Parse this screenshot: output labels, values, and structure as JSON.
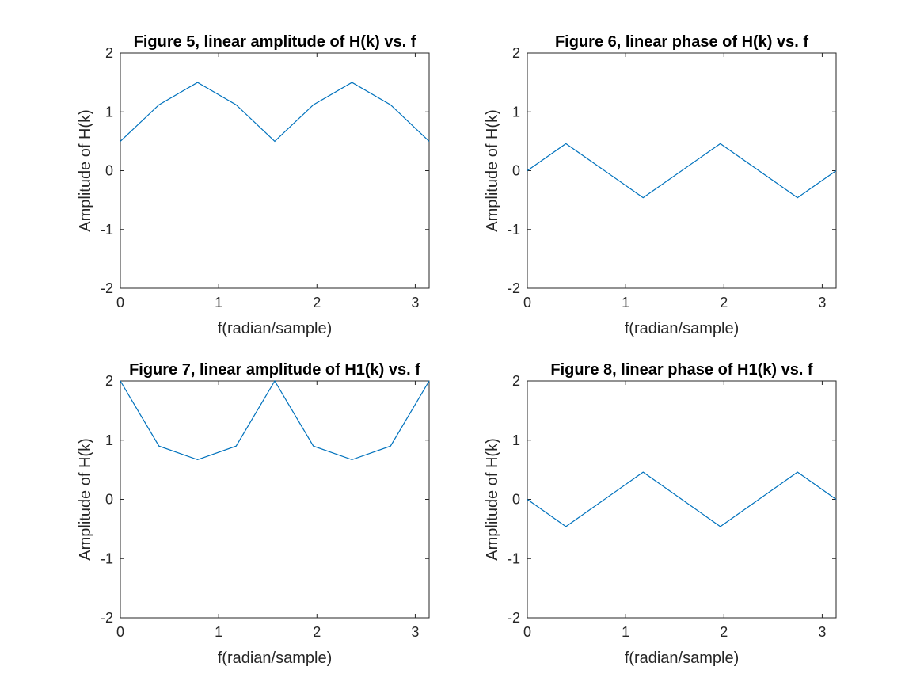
{
  "chart_data": [
    {
      "type": "line",
      "title": "Figure 5, linear amplitude of H(k) vs. f",
      "xlabel": "f(radian/sample)",
      "ylabel": "Amplitude of H(k)",
      "xlim": [
        0,
        3.1416
      ],
      "ylim": [
        -2,
        2
      ],
      "xticks": [
        0,
        1,
        2,
        3
      ],
      "yticks": [
        -2,
        -1,
        0,
        1,
        2
      ],
      "grid": false,
      "color": "#0072BD",
      "x": [
        0,
        0.3927,
        0.7854,
        1.1781,
        1.5708,
        1.9635,
        2.3562,
        2.7489,
        3.1416
      ],
      "y": [
        0.5,
        1.12,
        1.5,
        1.12,
        0.5,
        1.12,
        1.5,
        1.12,
        0.5
      ]
    },
    {
      "type": "line",
      "title": "Figure 6, linear phase of H(k) vs. f",
      "xlabel": "f(radian/sample)",
      "ylabel": "Amplitude of H(k)",
      "xlim": [
        0,
        3.1416
      ],
      "ylim": [
        -2,
        2
      ],
      "xticks": [
        0,
        1,
        2,
        3
      ],
      "yticks": [
        -2,
        -1,
        0,
        1,
        2
      ],
      "grid": false,
      "color": "#0072BD",
      "x": [
        0,
        0.3927,
        1.1781,
        1.9635,
        2.7489,
        3.1416
      ],
      "y": [
        0,
        0.46,
        -0.46,
        0.46,
        -0.46,
        0
      ]
    },
    {
      "type": "line",
      "title": "Figure 7, linear amplitude of H1(k) vs. f",
      "xlabel": "f(radian/sample)",
      "ylabel": "Amplitude of H(k)",
      "xlim": [
        0,
        3.1416
      ],
      "ylim": [
        -2,
        2
      ],
      "xticks": [
        0,
        1,
        2,
        3
      ],
      "yticks": [
        -2,
        -1,
        0,
        1,
        2
      ],
      "grid": false,
      "color": "#0072BD",
      "x": [
        0,
        0.3927,
        0.7854,
        1.1781,
        1.5708,
        1.9635,
        2.3562,
        2.7489,
        3.1416
      ],
      "y": [
        2,
        0.9,
        0.67,
        0.9,
        2,
        0.9,
        0.67,
        0.9,
        2
      ]
    },
    {
      "type": "line",
      "title": "Figure 8, linear phase of H1(k) vs. f",
      "xlabel": "f(radian/sample)",
      "ylabel": "Amplitude of H(k)",
      "xlim": [
        0,
        3.1416
      ],
      "ylim": [
        -2,
        2
      ],
      "xticks": [
        0,
        1,
        2,
        3
      ],
      "yticks": [
        -2,
        -1,
        0,
        1,
        2
      ],
      "grid": false,
      "color": "#0072BD",
      "x": [
        0,
        0.3927,
        1.1781,
        1.9635,
        2.7489,
        3.1416
      ],
      "y": [
        0,
        -0.46,
        0.46,
        -0.46,
        0.46,
        0
      ]
    }
  ]
}
